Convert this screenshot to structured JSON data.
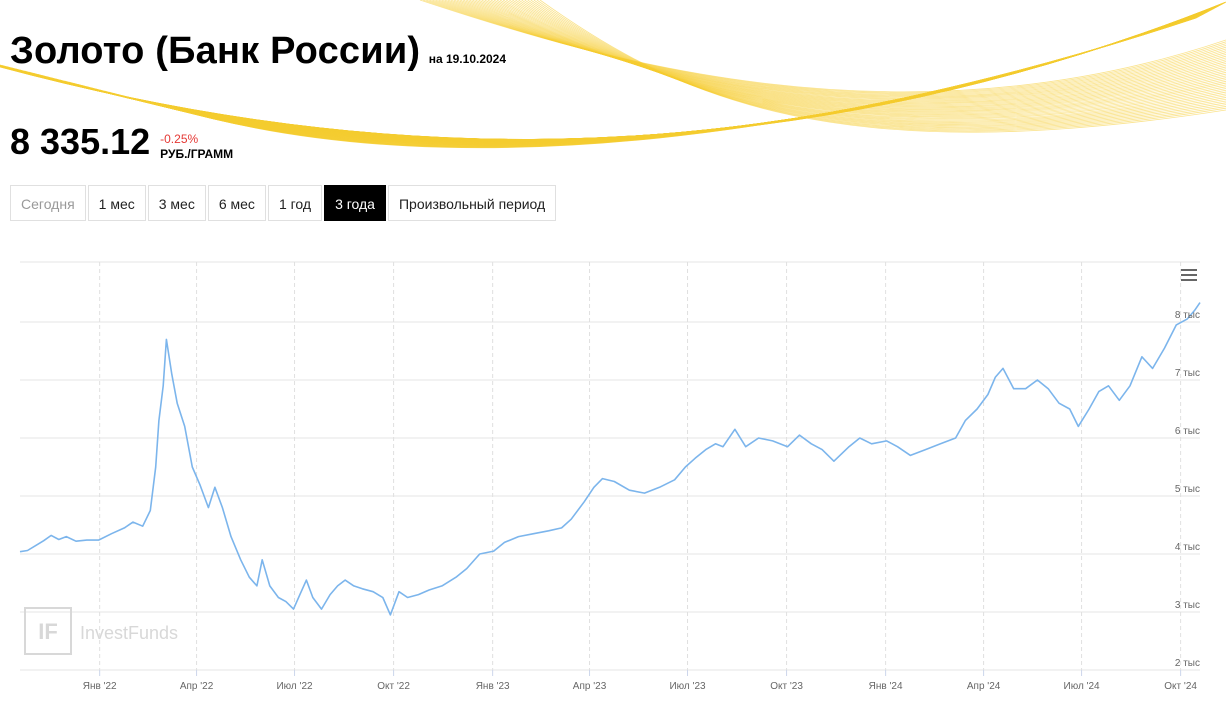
{
  "header": {
    "title": "Золото (Банк России)",
    "date_label": "на 19.10.2024",
    "price": "8 335.12",
    "change": "-0.25%",
    "unit": "РУБ./ГРАММ"
  },
  "periods": [
    {
      "label": "Сегодня",
      "state": "disabled"
    },
    {
      "label": "1 мес",
      "state": "normal"
    },
    {
      "label": "3 мес",
      "state": "normal"
    },
    {
      "label": "6 мес",
      "state": "normal"
    },
    {
      "label": "1 год",
      "state": "normal"
    },
    {
      "label": "3 года",
      "state": "active"
    },
    {
      "label": "Произвольный период",
      "state": "normal"
    }
  ],
  "watermark": "InvestFunds",
  "watermark_icon": "IF",
  "menu_icon": "hamburger-menu-icon",
  "colors": {
    "line": "#7cb5ec",
    "accent_yellow": "#f5cc30",
    "negative": "#e53935"
  },
  "chart_data": {
    "type": "line",
    "title": "",
    "xlabel": "",
    "ylabel": "",
    "ylim": [
      2000,
      8000
    ],
    "y_ticks": [
      {
        "value": 2000,
        "label": "2 тыс"
      },
      {
        "value": 3000,
        "label": "3 тыс"
      },
      {
        "value": 4000,
        "label": "4 тыс"
      },
      {
        "value": 5000,
        "label": "5 тыс"
      },
      {
        "value": 6000,
        "label": "6 тыс"
      },
      {
        "value": 7000,
        "label": "7 тыс"
      },
      {
        "value": 8000,
        "label": "8 тыс"
      }
    ],
    "xlim": [
      "2021-10-19",
      "2024-10-19"
    ],
    "x_ticks": [
      {
        "date": "2022-01-01",
        "label": "Янв '22"
      },
      {
        "date": "2022-04-01",
        "label": "Апр '22"
      },
      {
        "date": "2022-07-01",
        "label": "Июл '22"
      },
      {
        "date": "2022-10-01",
        "label": "Окт '22"
      },
      {
        "date": "2023-01-01",
        "label": "Янв '23"
      },
      {
        "date": "2023-04-01",
        "label": "Апр '23"
      },
      {
        "date": "2023-07-01",
        "label": "Июл '23"
      },
      {
        "date": "2023-10-01",
        "label": "Окт '23"
      },
      {
        "date": "2024-01-01",
        "label": "Янв '24"
      },
      {
        "date": "2024-04-01",
        "label": "Апр '24"
      },
      {
        "date": "2024-07-01",
        "label": "Июл '24"
      },
      {
        "date": "2024-10-01",
        "label": "Окт '24"
      }
    ],
    "grid": true,
    "series": [
      {
        "color": "#7cb5ec",
        "points": [
          [
            "2021-10-19",
            4040
          ],
          [
            "2021-10-26",
            4060
          ],
          [
            "2021-11-03",
            4150
          ],
          [
            "2021-11-10",
            4230
          ],
          [
            "2021-11-17",
            4320
          ],
          [
            "2021-11-24",
            4250
          ],
          [
            "2021-12-01",
            4300
          ],
          [
            "2021-12-10",
            4220
          ],
          [
            "2021-12-20",
            4240
          ],
          [
            "2021-12-31",
            4240
          ],
          [
            "2022-01-12",
            4350
          ],
          [
            "2022-01-24",
            4450
          ],
          [
            "2022-02-01",
            4550
          ],
          [
            "2022-02-10",
            4480
          ],
          [
            "2022-02-17",
            4750
          ],
          [
            "2022-02-22",
            5500
          ],
          [
            "2022-02-25",
            6300
          ],
          [
            "2022-03-01",
            6900
          ],
          [
            "2022-03-04",
            7700
          ],
          [
            "2022-03-09",
            7100
          ],
          [
            "2022-03-14",
            6600
          ],
          [
            "2022-03-21",
            6200
          ],
          [
            "2022-03-28",
            5500
          ],
          [
            "2022-04-04",
            5200
          ],
          [
            "2022-04-12",
            4800
          ],
          [
            "2022-04-18",
            5150
          ],
          [
            "2022-04-25",
            4800
          ],
          [
            "2022-05-03",
            4300
          ],
          [
            "2022-05-12",
            3900
          ],
          [
            "2022-05-20",
            3600
          ],
          [
            "2022-05-27",
            3450
          ],
          [
            "2022-06-01",
            3900
          ],
          [
            "2022-06-08",
            3450
          ],
          [
            "2022-06-16",
            3250
          ],
          [
            "2022-06-23",
            3180
          ],
          [
            "2022-06-30",
            3050
          ],
          [
            "2022-07-06",
            3300
          ],
          [
            "2022-07-12",
            3550
          ],
          [
            "2022-07-18",
            3250
          ],
          [
            "2022-07-26",
            3050
          ],
          [
            "2022-08-03",
            3300
          ],
          [
            "2022-08-10",
            3450
          ],
          [
            "2022-08-17",
            3550
          ],
          [
            "2022-08-25",
            3450
          ],
          [
            "2022-09-02",
            3400
          ],
          [
            "2022-09-12",
            3350
          ],
          [
            "2022-09-21",
            3250
          ],
          [
            "2022-09-28",
            2950
          ],
          [
            "2022-10-06",
            3350
          ],
          [
            "2022-10-14",
            3250
          ],
          [
            "2022-10-24",
            3300
          ],
          [
            "2022-11-03",
            3380
          ],
          [
            "2022-11-15",
            3450
          ],
          [
            "2022-11-28",
            3600
          ],
          [
            "2022-12-08",
            3750
          ],
          [
            "2022-12-20",
            4000
          ],
          [
            "2023-01-02",
            4050
          ],
          [
            "2023-01-12",
            4200
          ],
          [
            "2023-01-25",
            4300
          ],
          [
            "2023-02-08",
            4350
          ],
          [
            "2023-02-22",
            4400
          ],
          [
            "2023-03-06",
            4450
          ],
          [
            "2023-03-15",
            4600
          ],
          [
            "2023-03-27",
            4900
          ],
          [
            "2023-04-05",
            5150
          ],
          [
            "2023-04-13",
            5300
          ],
          [
            "2023-04-24",
            5250
          ],
          [
            "2023-05-08",
            5100
          ],
          [
            "2023-05-22",
            5050
          ],
          [
            "2023-06-05",
            5150
          ],
          [
            "2023-06-19",
            5280
          ],
          [
            "2023-06-29",
            5500
          ],
          [
            "2023-07-08",
            5650
          ],
          [
            "2023-07-18",
            5800
          ],
          [
            "2023-07-27",
            5900
          ],
          [
            "2023-08-03",
            5850
          ],
          [
            "2023-08-14",
            6150
          ],
          [
            "2023-08-24",
            5850
          ],
          [
            "2023-09-05",
            6000
          ],
          [
            "2023-09-18",
            5950
          ],
          [
            "2023-10-02",
            5850
          ],
          [
            "2023-10-13",
            6050
          ],
          [
            "2023-10-24",
            5900
          ],
          [
            "2023-11-03",
            5800
          ],
          [
            "2023-11-14",
            5600
          ],
          [
            "2023-11-28",
            5850
          ],
          [
            "2023-12-08",
            6000
          ],
          [
            "2023-12-19",
            5900
          ],
          [
            "2024-01-02",
            5950
          ],
          [
            "2024-01-12",
            5850
          ],
          [
            "2024-01-24",
            5700
          ],
          [
            "2024-02-07",
            5800
          ],
          [
            "2024-02-21",
            5900
          ],
          [
            "2024-03-06",
            6000
          ],
          [
            "2024-03-15",
            6300
          ],
          [
            "2024-03-26",
            6500
          ],
          [
            "2024-04-05",
            6750
          ],
          [
            "2024-04-12",
            7050
          ],
          [
            "2024-04-19",
            7200
          ],
          [
            "2024-04-29",
            6850
          ],
          [
            "2024-05-10",
            6850
          ],
          [
            "2024-05-21",
            7000
          ],
          [
            "2024-05-31",
            6850
          ],
          [
            "2024-06-10",
            6600
          ],
          [
            "2024-06-20",
            6500
          ],
          [
            "2024-06-28",
            6200
          ],
          [
            "2024-07-08",
            6500
          ],
          [
            "2024-07-17",
            6800
          ],
          [
            "2024-07-26",
            6900
          ],
          [
            "2024-08-05",
            6650
          ],
          [
            "2024-08-15",
            6900
          ],
          [
            "2024-08-26",
            7400
          ],
          [
            "2024-09-05",
            7200
          ],
          [
            "2024-09-16",
            7550
          ],
          [
            "2024-09-27",
            7950
          ],
          [
            "2024-10-07",
            8050
          ],
          [
            "2024-10-14",
            8200
          ],
          [
            "2024-10-19",
            8335
          ]
        ]
      }
    ]
  }
}
